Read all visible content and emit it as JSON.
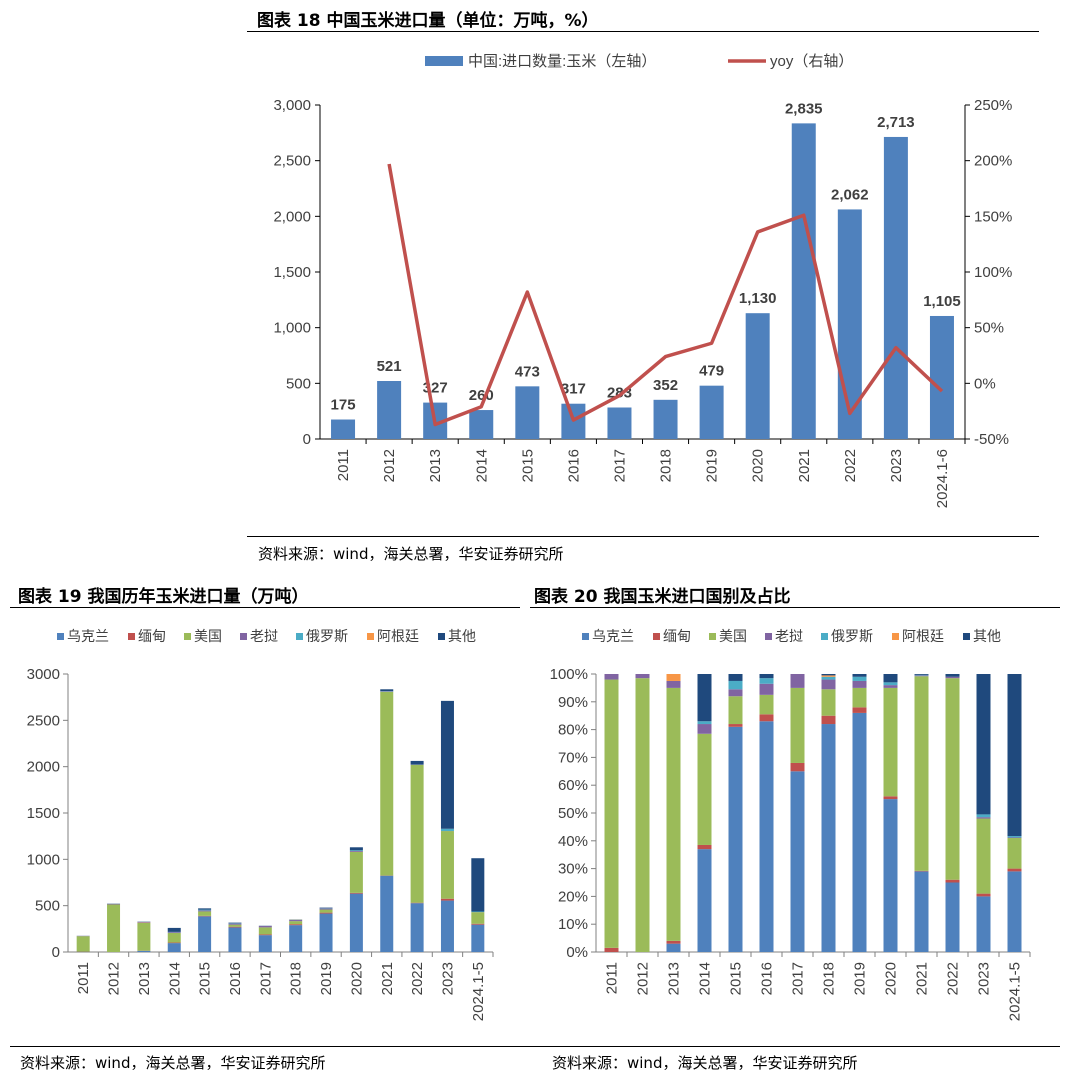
{
  "fig18": {
    "title": "图表 18 中国玉米进口量（单位：万吨，%）",
    "source": "资料来源：wind，海关总署，华安证券研究所"
  },
  "fig19": {
    "title": "图表 19 我国历年玉米进口量（万吨）",
    "source": "资料来源：wind，海关总署，华安证券研究所"
  },
  "fig20": {
    "title": "图表 20 我国玉米进口国别及占比",
    "source": "资料来源：wind，海关总署，华安证券研究所"
  },
  "chart_data": [
    {
      "type": "bar",
      "combo_line": true,
      "categories": [
        "2011",
        "2012",
        "2013",
        "2014",
        "2015",
        "2016",
        "2017",
        "2018",
        "2019",
        "2020",
        "2021",
        "2022",
        "2023",
        "2024.1-6"
      ],
      "series": [
        {
          "name": "中国:进口数量:玉米（左轴）",
          "type": "bar",
          "axis": "left",
          "color": "#4f81bd",
          "values": [
            175,
            521,
            327,
            260,
            473,
            317,
            283,
            352,
            479,
            1130,
            2835,
            2062,
            2713,
            1105
          ],
          "labels": [
            "175",
            "521",
            "327",
            "260",
            "473",
            "317",
            "283",
            "352",
            "479",
            "1,130",
            "2,835",
            "2,062",
            "2,713",
            "1,105"
          ]
        },
        {
          "name": "yoy（右轴）",
          "type": "line",
          "axis": "right",
          "color": "#c0504d",
          "values": [
            null,
            197,
            -37,
            -21,
            82,
            -33,
            -11,
            24,
            36,
            136,
            151,
            -27,
            32,
            -7
          ]
        }
      ],
      "left_axis": {
        "ylim": [
          0,
          3000
        ],
        "ticks": [
          "0",
          "500",
          "1,000",
          "1,500",
          "2,000",
          "2,500",
          "3,000"
        ]
      },
      "right_axis": {
        "ylim": [
          -50,
          250
        ],
        "ticks": [
          "-50%",
          "0%",
          "50%",
          "100%",
          "150%",
          "200%",
          "250%"
        ]
      },
      "legend": "top",
      "grid": false
    },
    {
      "type": "bar",
      "stacked": true,
      "categories": [
        "2011",
        "2012",
        "2013",
        "2014",
        "2015",
        "2016",
        "2017",
        "2018",
        "2019",
        "2020",
        "2021",
        "2022",
        "2023",
        "2024.1-5"
      ],
      "series": [
        {
          "name": "乌克兰",
          "color": "#4f81bd",
          "values": [
            2,
            0,
            12,
            96,
            385,
            265,
            182,
            290,
            415,
            630,
            823,
            527,
            555,
            295
          ]
        },
        {
          "name": "缅甸",
          "color": "#c0504d",
          "values": [
            2,
            0,
            2,
            6,
            5,
            8,
            8,
            10,
            10,
            8,
            2,
            5,
            20,
            10
          ]
        },
        {
          "name": "美国",
          "color": "#9bbb59",
          "values": [
            167,
            513,
            300,
            103,
            48,
            22,
            76,
            33,
            33,
            443,
            1983,
            1488,
            730,
            125
          ]
        },
        {
          "name": "老挝",
          "color": "#8064a2",
          "values": [
            3,
            5,
            6,
            9,
            11,
            13,
            14,
            12,
            12,
            9,
            4,
            2,
            1,
            1
          ]
        },
        {
          "name": "俄罗斯",
          "color": "#4bacc6",
          "values": [
            0,
            0,
            0,
            3,
            8,
            5,
            0,
            4,
            4,
            8,
            3,
            1,
            24,
            6
          ]
        },
        {
          "name": "阿根廷",
          "color": "#f79646",
          "values": [
            0,
            0,
            3,
            0,
            0,
            0,
            0,
            2,
            0,
            0,
            0,
            0,
            0,
            0
          ]
        },
        {
          "name": "其他",
          "color": "#1f497d",
          "values": [
            1,
            3,
            4,
            43,
            14,
            4,
            3,
            1,
            5,
            32,
            20,
            39,
            1380,
            575
          ]
        }
      ],
      "ylim": [
        0,
        3000
      ],
      "ticks": [
        "0",
        "500",
        "1000",
        "1500",
        "2000",
        "2500",
        "3000"
      ],
      "legend": "top"
    },
    {
      "type": "bar",
      "stacked": true,
      "percent": true,
      "categories": [
        "2011",
        "2012",
        "2013",
        "2014",
        "2015",
        "2016",
        "2017",
        "2018",
        "2019",
        "2020",
        "2021",
        "2022",
        "2023",
        "2024.1-5"
      ],
      "series": [
        {
          "name": "乌克兰",
          "color": "#4f81bd",
          "values": [
            0,
            0,
            3,
            37,
            81,
            83,
            65,
            82,
            86,
            55,
            29,
            25,
            20,
            29
          ]
        },
        {
          "name": "缅甸",
          "color": "#c0504d",
          "values": [
            1.5,
            0,
            1,
            1.5,
            1,
            2.5,
            3,
            3,
            2,
            1,
            0.2,
            1,
            1,
            1
          ]
        },
        {
          "name": "美国",
          "color": "#9bbb59",
          "values": [
            96.5,
            98.5,
            91,
            40,
            10,
            7,
            27,
            9.5,
            7,
            39,
            70,
            72.5,
            27,
            11
          ]
        },
        {
          "name": "老挝",
          "color": "#8064a2",
          "values": [
            2,
            1.5,
            2.5,
            3.5,
            2.5,
            4,
            5,
            3.5,
            2.5,
            1,
            0.3,
            0.5,
            0.5,
            0.2
          ]
        },
        {
          "name": "俄罗斯",
          "color": "#4bacc6",
          "values": [
            0,
            0,
            0,
            1,
            3,
            2,
            0,
            1,
            1.5,
            1,
            0.2,
            0,
            1,
            0.5
          ]
        },
        {
          "name": "阿根廷",
          "color": "#f79646",
          "values": [
            0,
            0,
            2.5,
            0,
            0,
            0,
            0,
            0.5,
            0,
            0,
            0,
            0,
            0,
            0
          ]
        },
        {
          "name": "其他",
          "color": "#1f497d",
          "values": [
            0,
            0,
            0,
            17,
            2.5,
            1.5,
            0,
            0.5,
            1,
            3,
            0.3,
            1,
            50.5,
            58.3
          ]
        }
      ],
      "ylim": [
        0,
        100
      ],
      "ticks": [
        "0%",
        "10%",
        "20%",
        "30%",
        "40%",
        "50%",
        "60%",
        "70%",
        "80%",
        "90%",
        "100%"
      ],
      "legend": "top"
    }
  ]
}
